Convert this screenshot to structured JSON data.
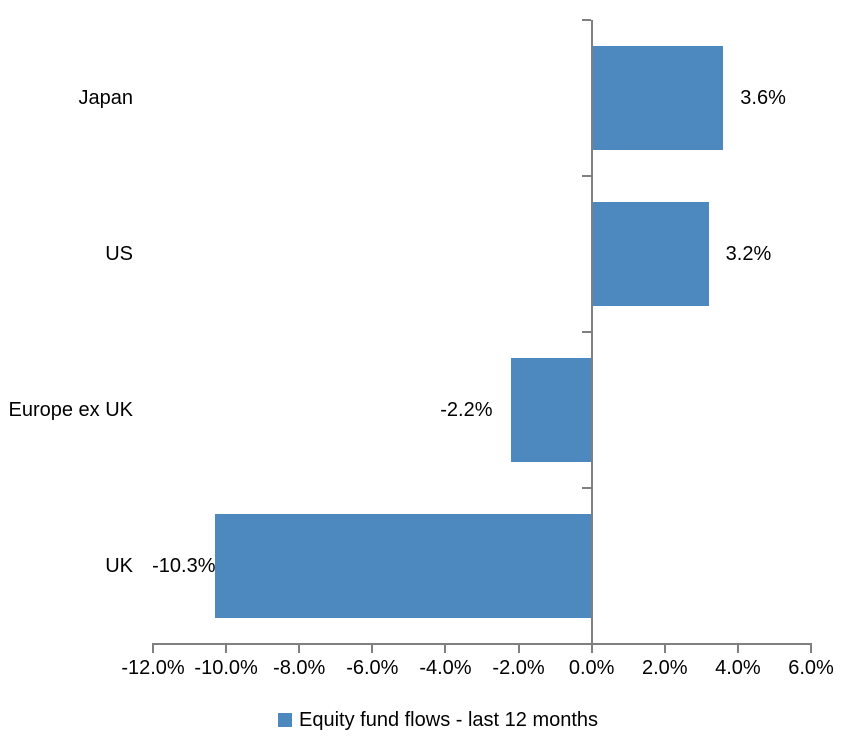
{
  "chart_data": {
    "type": "bar",
    "orientation": "horizontal",
    "title": "",
    "categories": [
      "Japan",
      "US",
      "Europe ex UK",
      "UK"
    ],
    "values": [
      3.6,
      3.2,
      -2.2,
      -10.3
    ],
    "value_labels": [
      "3.6%",
      "3.2%",
      "-2.2%",
      "-10.3%"
    ],
    "series": [
      {
        "name": "Equity fund flows - last 12 months",
        "values": [
          3.6,
          3.2,
          -2.2,
          -10.3
        ]
      }
    ],
    "legend": "Equity fund flows - last 12 months",
    "legend_position": "bottom",
    "xlabel": "",
    "ylabel": "",
    "xlim": [
      -12,
      6
    ],
    "x_ticks": [
      -12,
      -10,
      -8,
      -6,
      -4,
      -2,
      0,
      2,
      4,
      6
    ],
    "x_tick_labels": [
      "-12.0%",
      "-10.0%",
      "-8.0%",
      "-6.0%",
      "-4.0%",
      "-2.0%",
      "0.0%",
      "2.0%",
      "4.0%",
      "6.0%"
    ],
    "grid": false,
    "bar_color": "#4D88BE",
    "axis_color": "#808080",
    "text_color": "#000000"
  }
}
